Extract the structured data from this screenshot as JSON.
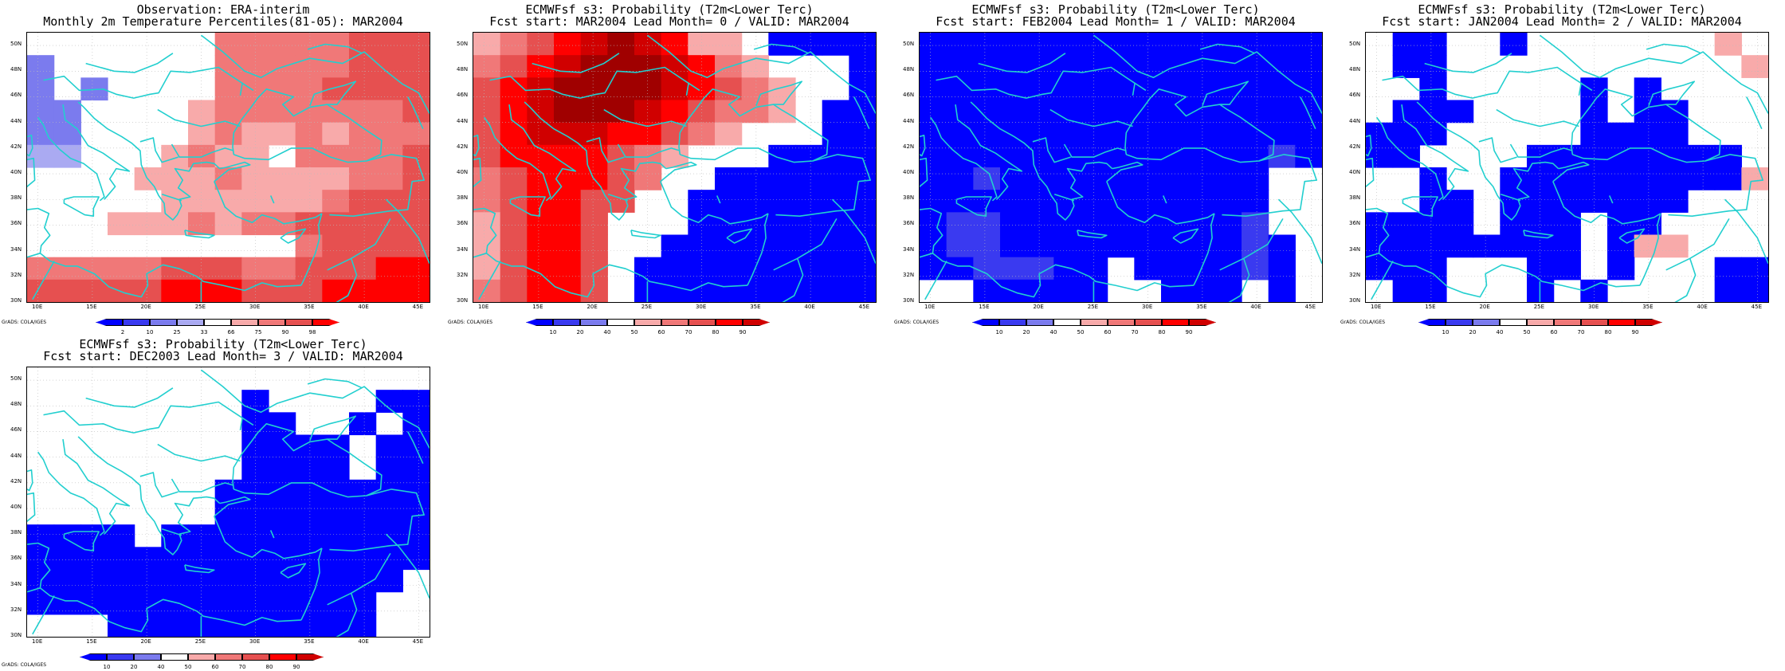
{
  "credit": "GrADS: COLA/IGES",
  "axes": {
    "x_ticks": [
      "10E",
      "15E",
      "20E",
      "25E",
      "30E",
      "35E",
      "40E",
      "45E"
    ],
    "y_ticks": [
      "50N",
      "48N",
      "46N",
      "44N",
      "42N",
      "40N",
      "38N",
      "36N",
      "34N",
      "32N",
      "30N"
    ]
  },
  "colors": {
    "coast": "#22cfcf",
    "grid": "#bbbbbb",
    "palette": {
      "b3": "#0000ff",
      "b2": "#3a3af0",
      "b1": "#7b7bee",
      "b0": "#aaaaf2",
      "w": "#ffffff",
      "r1": "#f8aaaa",
      "r2": "#f07878",
      "r3": "#e65050",
      "r4": "#ff0000",
      "r5": "#d00000",
      "r6": "#a00000"
    }
  },
  "colorbars": {
    "obs": {
      "labels": [
        "2",
        "10",
        "25",
        "33",
        "66",
        "75",
        "90",
        "98"
      ],
      "colors": [
        "#0000ff",
        "#3a3af0",
        "#7b7bee",
        "#aaaaf2",
        "#ffffff",
        "#f8aaaa",
        "#f07878",
        "#e65050",
        "#ff0000"
      ]
    },
    "prob": {
      "labels": [
        "10",
        "20",
        "40",
        "50",
        "60",
        "70",
        "80",
        "90"
      ],
      "colors": [
        "#0000ff",
        "#3a3af0",
        "#7b7bee",
        "#ffffff",
        "#f8aaaa",
        "#f07878",
        "#e65050",
        "#ff0000",
        "#d00000"
      ]
    }
  },
  "panels": [
    {
      "title1": "Observation: ERA-interim",
      "title2": "Monthly 2m Temperature Percentiles(81-05): MAR2004",
      "colorbar": "obs",
      "grid": [
        "www wwwr2r2r2r2r2r3r3r3r3",
        "b1wwwwwwwr2r2r2r2r2r3r3r3",
        "b1wwwwwwwr2r2r2r2r3r3r3r3",
        "b1wb1wwwwr1r2r2r2r2r2r2r3",
        "b1b1wwwwr1r2r1r1r2r1r2r2r2",
        "b1b1wwwwr1r2r1r1wr2r2r2r3",
        "b0b0wwwr1r2r1r1r1r1r1r2r3",
        "wwwwwr1r1r1r1r1r1r2r3r3",
        "wwwr1r1r1r2r1r2r2r3r3r3r3",
        "wwwwwwwwwwr2r3r3r3r3",
        "r2r2r2r2r2r3r3r3r2r2r3r3r3r4r4",
        "r3r3r3r3r3r4r4r4r3r3r3r4r4r4r4"
      ]
    },
    {
      "title1": "ECMWFsf s3: Probability (T2m<Lower Terc)",
      "title2": "Fcst start: MAR2004  Lead Month= 0 / VALID: MAR2004",
      "colorbar": "prob",
      "grid": []
    },
    {
      "title1": "ECMWFsf s3: Probability (T2m<Lower Terc)",
      "title2": "Fcst start: FEB2004  Lead Month= 1 / VALID: MAR2004",
      "colorbar": "prob",
      "grid": []
    },
    {
      "title1": "ECMWFsf s3: Probability (T2m<Lower Terc)",
      "title2": "Fcst start: JAN2004  Lead Month= 2 / VALID: MAR2004",
      "colorbar": "prob",
      "grid": []
    },
    {
      "title1": "ECMWFsf s3: Probability (T2m<Lower Terc)",
      "title2": "Fcst start: DEC2003  Lead Month= 3 / VALID: MAR2004",
      "colorbar": "prob",
      "grid": []
    }
  ]
}
